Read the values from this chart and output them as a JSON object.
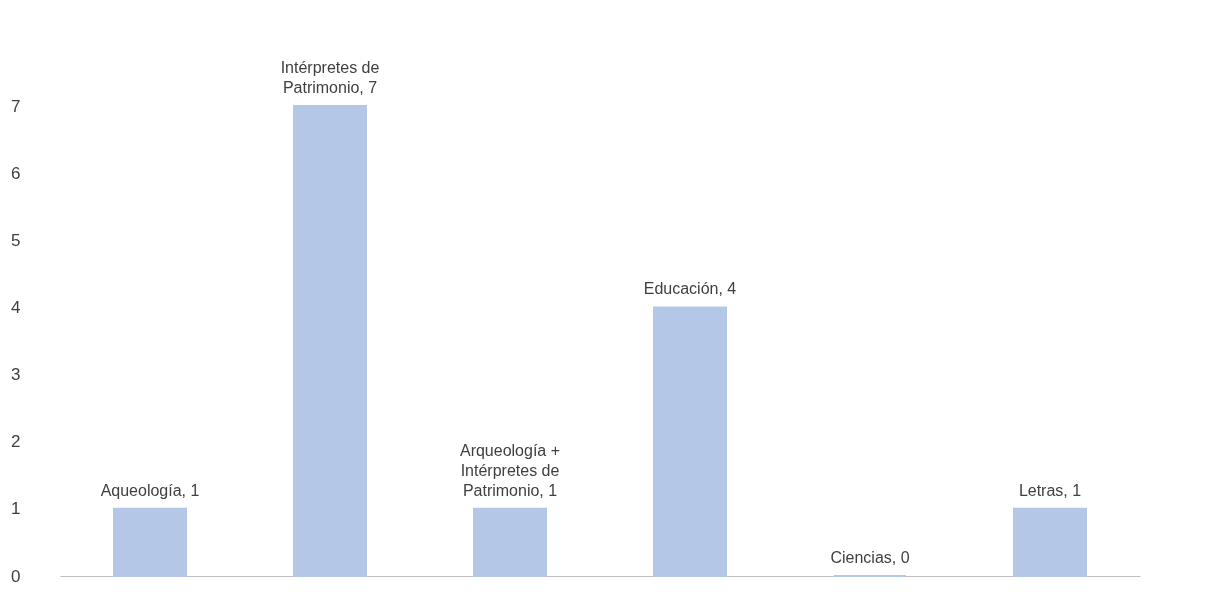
{
  "chart_data": {
    "type": "bar",
    "categories": [
      null,
      null,
      null,
      null,
      null,
      null
    ],
    "values": [
      1,
      7,
      1,
      4,
      0,
      1
    ],
    "value_labels": [
      "Aqueología, 1",
      "Intérpretes de Patrimonio, 7",
      "Arqueología + Intérpretes de Patrimonio, 1",
      "Educación, 4",
      "Ciencias, 0",
      "Letras, 1"
    ],
    "color": "#b4c7e7",
    "ylim": [
      0,
      7
    ],
    "yticks": [
      0,
      1,
      2,
      3,
      4,
      5,
      6,
      7
    ],
    "grid": false,
    "tick_labels": "y"
  }
}
